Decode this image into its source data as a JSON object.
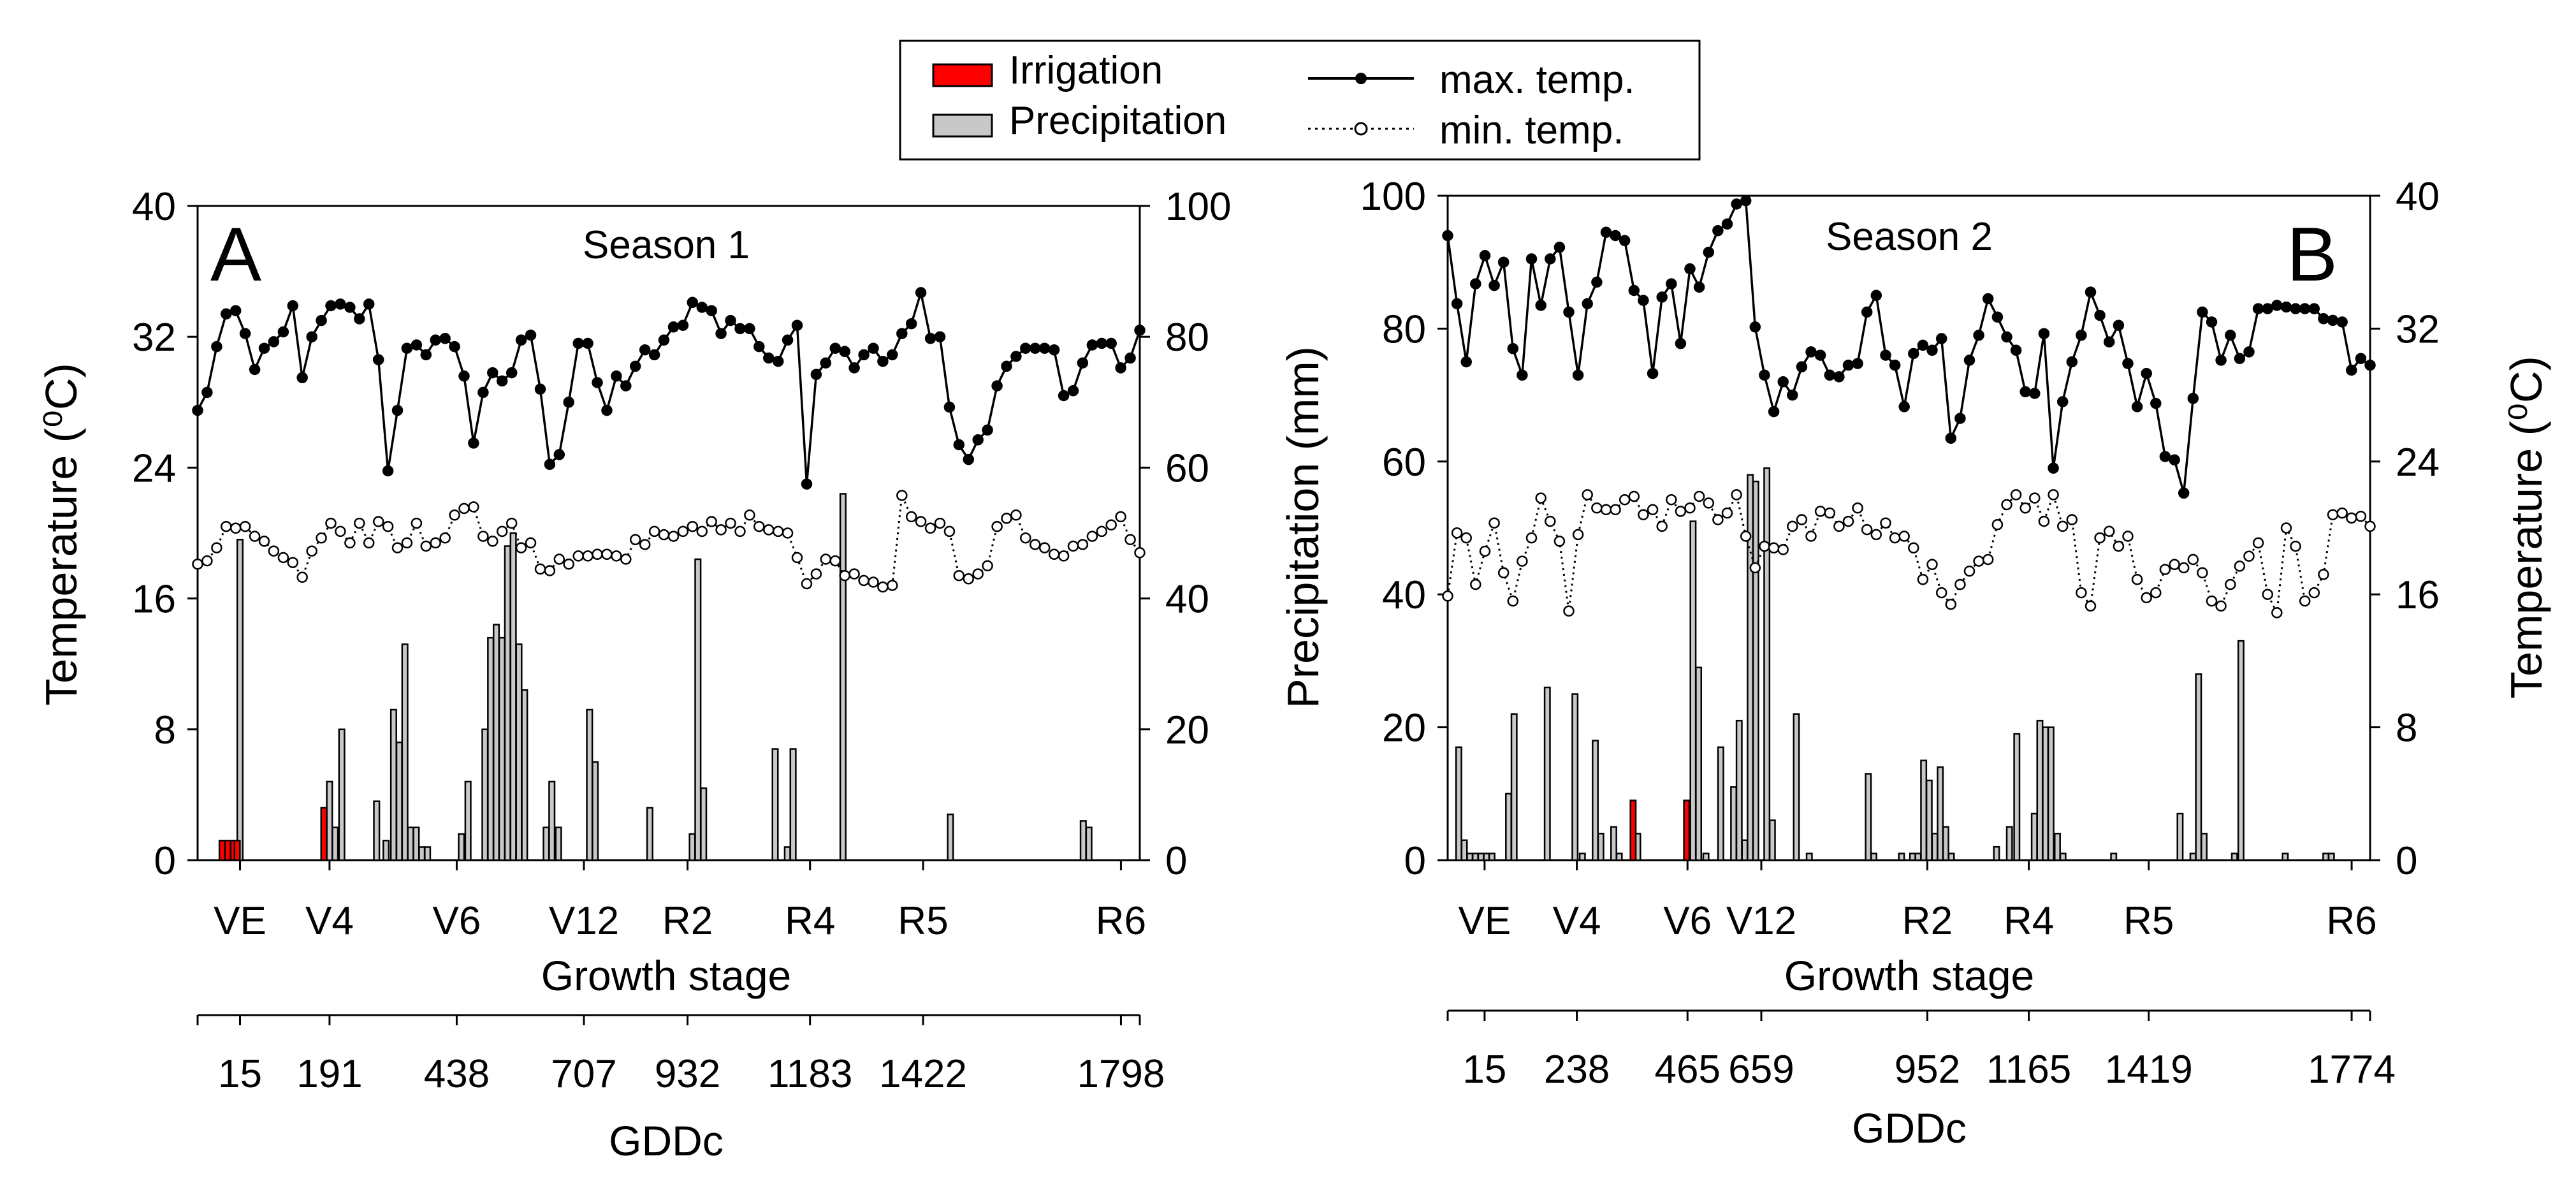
{
  "legend": {
    "items": [
      {
        "label": "Irrigation",
        "kind": "bar",
        "fill": "#ff0000"
      },
      {
        "label": "Precipitation",
        "kind": "bar",
        "fill": "#c8c8c8"
      },
      {
        "label": "max. temp.",
        "kind": "line-solid"
      },
      {
        "label": "min. temp.",
        "kind": "line-dotted"
      }
    ]
  },
  "colors": {
    "irrigation": "#ff0000",
    "precipitation": "#c8c8c8",
    "line": "#000000"
  },
  "chart_data": [
    {
      "type": "bar+line",
      "panel_letter": "A",
      "title": "Season 1",
      "ylabel_left": "Temperature (⁰C)",
      "ylabel_right": "",
      "xlabel": "Growth stage",
      "x2label": "GDDc",
      "day_range": [
        0,
        100
      ],
      "stages": [
        {
          "label": "VE",
          "day": 4.5
        },
        {
          "label": "V4",
          "day": 14
        },
        {
          "label": "V6",
          "day": 27.5
        },
        {
          "label": "V12",
          "day": 41
        },
        {
          "label": "R2",
          "day": 52
        },
        {
          "label": "R4",
          "day": 65
        },
        {
          "label": "R5",
          "day": 77
        },
        {
          "label": "R6",
          "day": 98
        }
      ],
      "gdd_ticks": [
        {
          "label": "15",
          "day": 4.5
        },
        {
          "label": "191",
          "day": 14
        },
        {
          "label": "438",
          "day": 27.5
        },
        {
          "label": "707",
          "day": 41
        },
        {
          "label": "932",
          "day": 52
        },
        {
          "label": "1183",
          "day": 65
        },
        {
          "label": "1422",
          "day": 77
        },
        {
          "label": "1798",
          "day": 98
        }
      ],
      "temp_axis": {
        "side": "left",
        "ticks": [
          "0",
          "8",
          "16",
          "24",
          "32",
          "40"
        ],
        "range": [
          0,
          40
        ]
      },
      "precip_axis": {
        "side": "right",
        "ticks": [
          "0",
          "20",
          "40",
          "60",
          "80",
          "100"
        ],
        "range": [
          0,
          100
        ]
      },
      "max_temp_range": [
        22,
        35
      ],
      "max_temp_n": 100,
      "max_temp_start": 27.5,
      "max_temp_drift": [
        0.002,
        0.11
      ],
      "max_temp": [
        27.5,
        28.6,
        31.4,
        33.4,
        33.6,
        32.2,
        30,
        31.3,
        31.7,
        32.3,
        33.9,
        29.5,
        32,
        33,
        33.9,
        34,
        33.8,
        33.1,
        34,
        30.6,
        23.8,
        27.5,
        31.3,
        31.5,
        30.9,
        31.8,
        31.9,
        31.4,
        29.6,
        25.5,
        28.6,
        29.8,
        29.3,
        29.8,
        31.8,
        32.1,
        28.8,
        24.2,
        24.8,
        28,
        31.6,
        31.6,
        29.2,
        27.5,
        29.6,
        29,
        30.2,
        31.2,
        30.9,
        31.8,
        32.6,
        32.7,
        34.1,
        33.8,
        33.6,
        32.2,
        33,
        32.5,
        32.5,
        31.4,
        30.7,
        30.5,
        31.8,
        32.7,
        23,
        29.7,
        30.4,
        31.3,
        31.1,
        30.1,
        30.9,
        31.3,
        30.5,
        30.9,
        32.2,
        32.8,
        34.7,
        31.9,
        32,
        27.7,
        25.4,
        24.5,
        25.7,
        26.3,
        29,
        30.2,
        30.8,
        31.3,
        31.3,
        31.3,
        31.2,
        28.4,
        28.7,
        30.4,
        31.5,
        31.6,
        31.6,
        30.1,
        30.7,
        32.4
      ],
      "min_temp_range": [
        16,
        22.5
      ],
      "min_temp": [
        18.1,
        18.3,
        19.1,
        20.4,
        20.3,
        20.4,
        19.8,
        19.5,
        18.9,
        18.5,
        18.2,
        17.3,
        18.9,
        19.7,
        20.6,
        20.1,
        19.4,
        20.6,
        19.4,
        20.7,
        20.4,
        19.1,
        19.4,
        20.6,
        19.2,
        19.4,
        19.7,
        21.1,
        21.5,
        21.6,
        19.8,
        19.5,
        20.1,
        20.6,
        19.1,
        19.4,
        17.8,
        17.7,
        18.4,
        18.1,
        18.6,
        18.6,
        18.7,
        18.7,
        18.6,
        18.4,
        19.6,
        19.3,
        20.1,
        19.9,
        19.8,
        20.1,
        20.4,
        20.1,
        20.7,
        20.2,
        20.6,
        20.1,
        21.1,
        20.4,
        20.2,
        20.1,
        20,
        18.5,
        16.9,
        17.5,
        18.4,
        18.3,
        17.4,
        17.5,
        17.1,
        17,
        16.7,
        16.8,
        22.3,
        21,
        20.7,
        20.3,
        20.6,
        20.1,
        17.4,
        17.2,
        17.5,
        18,
        20.4,
        20.9,
        21.1,
        19.7,
        19.3,
        19.1,
        18.7,
        18.6,
        19.2,
        19.3,
        19.8,
        20.1,
        20.5,
        21,
        19.6,
        18.8
      ],
      "precipitation": [
        {
          "day": 4.5,
          "mm": 49
        },
        {
          "day": 14,
          "mm": 12
        },
        {
          "day": 14.6,
          "mm": 5
        },
        {
          "day": 15.3,
          "mm": 20
        },
        {
          "day": 19,
          "mm": 9
        },
        {
          "day": 20,
          "mm": 3
        },
        {
          "day": 20.8,
          "mm": 23
        },
        {
          "day": 21.4,
          "mm": 18
        },
        {
          "day": 22,
          "mm": 33
        },
        {
          "day": 22.6,
          "mm": 5
        },
        {
          "day": 23.2,
          "mm": 5
        },
        {
          "day": 23.8,
          "mm": 2
        },
        {
          "day": 24.4,
          "mm": 2
        },
        {
          "day": 28,
          "mm": 4
        },
        {
          "day": 28.7,
          "mm": 12
        },
        {
          "day": 30.5,
          "mm": 20
        },
        {
          "day": 31.1,
          "mm": 34
        },
        {
          "day": 31.7,
          "mm": 36
        },
        {
          "day": 32.3,
          "mm": 34
        },
        {
          "day": 32.9,
          "mm": 48
        },
        {
          "day": 33.5,
          "mm": 50
        },
        {
          "day": 34.1,
          "mm": 33
        },
        {
          "day": 34.7,
          "mm": 26
        },
        {
          "day": 37,
          "mm": 5
        },
        {
          "day": 37.6,
          "mm": 12
        },
        {
          "day": 38.3,
          "mm": 5
        },
        {
          "day": 41.6,
          "mm": 23
        },
        {
          "day": 42.2,
          "mm": 15
        },
        {
          "day": 48,
          "mm": 8
        },
        {
          "day": 52.5,
          "mm": 4
        },
        {
          "day": 53.1,
          "mm": 46
        },
        {
          "day": 53.7,
          "mm": 11
        },
        {
          "day": 61.3,
          "mm": 17
        },
        {
          "day": 62.6,
          "mm": 2
        },
        {
          "day": 63.2,
          "mm": 17
        },
        {
          "day": 68.5,
          "mm": 56
        },
        {
          "day": 79.9,
          "mm": 7
        },
        {
          "day": 94,
          "mm": 6
        },
        {
          "day": 94.6,
          "mm": 5
        }
      ],
      "irrigation": [
        {
          "day": 2.6,
          "mm": 3
        },
        {
          "day": 3.2,
          "mm": 3
        },
        {
          "day": 3.8,
          "mm": 3
        },
        {
          "day": 4.2,
          "mm": 3
        },
        {
          "day": 13.4,
          "mm": 8
        }
      ]
    },
    {
      "type": "bar+line",
      "panel_letter": "B",
      "title": "Season 2",
      "ylabel_left": "Precipitation (mm)",
      "ylabel_right": "Temperature (⁰C)",
      "xlabel": "Growth stage",
      "x2label": "GDDc",
      "day_range": [
        0,
        100
      ],
      "stages": [
        {
          "label": "VE",
          "day": 4
        },
        {
          "label": "V4",
          "day": 14
        },
        {
          "label": "V6",
          "day": 26
        },
        {
          "label": "V12",
          "day": 34
        },
        {
          "label": "R2",
          "day": 52
        },
        {
          "label": "R4",
          "day": 63
        },
        {
          "label": "R5",
          "day": 76
        },
        {
          "label": "R6",
          "day": 98
        }
      ],
      "gdd_ticks": [
        {
          "label": "15",
          "day": 4
        },
        {
          "label": "238",
          "day": 14
        },
        {
          "label": "465",
          "day": 26
        },
        {
          "label": "659",
          "day": 34
        },
        {
          "label": "952",
          "day": 52
        },
        {
          "label": "1165",
          "day": 63
        },
        {
          "label": "1419",
          "day": 76
        },
        {
          "label": "1774",
          "day": 98
        }
      ],
      "temp_axis": {
        "side": "right",
        "ticks": [
          "0",
          "8",
          "16",
          "24",
          "32",
          "40"
        ],
        "range": [
          0,
          40
        ]
      },
      "precip_axis": {
        "side": "left",
        "ticks": [
          "0",
          "20",
          "40",
          "60",
          "80",
          "100"
        ],
        "range": [
          0,
          100
        ]
      },
      "max_temp_range": [
        22,
        40
      ],
      "max_temp_n": 100,
      "max_temp_start": 37.6,
      "max_temp_drift": [
        -0.025,
        0
      ],
      "max_temp": [
        37.6,
        33.5,
        30,
        34.7,
        36.4,
        34.6,
        36,
        30.8,
        29.2,
        36.2,
        33.4,
        36.2,
        36.9,
        33,
        29.2,
        33.5,
        34.8,
        37.8,
        37.6,
        37.3,
        34.3,
        33.7,
        29.3,
        33.9,
        34.7,
        31.1,
        35.6,
        34.5,
        36.6,
        37.9,
        38.3,
        39.5,
        39.7,
        32.1,
        29.2,
        27,
        28.8,
        28,
        29.7,
        30.6,
        30.4,
        29.2,
        29.1,
        29.8,
        29.9,
        33,
        34,
        30.4,
        29.8,
        27.3,
        30.5,
        31,
        30.7,
        31.4,
        25.4,
        26.6,
        30.1,
        31.6,
        33.8,
        32.7,
        31.5,
        30.7,
        28.2,
        28.1,
        31.7,
        23.6,
        27.6,
        30,
        31.6,
        34.2,
        32.8,
        31.2,
        32.2,
        29.9,
        27.3,
        29.3,
        27.5,
        24.3,
        24.1,
        22.1,
        27.8,
        33,
        32.4,
        30.1,
        31.6,
        30.2,
        30.6,
        33.2,
        33.2,
        33.4,
        33.3,
        33.2,
        33.2,
        33.2,
        32.6,
        32.5,
        32.4,
        29.5,
        30.2,
        29.8
      ],
      "min_temp_range": [
        14,
        22.5
      ],
      "min_temp": [
        15.9,
        19.7,
        19.4,
        16.6,
        18.6,
        20.3,
        17.3,
        15.6,
        18,
        19.4,
        21.8,
        20.4,
        19.2,
        15,
        19.6,
        22,
        21.2,
        21.1,
        21.1,
        21.7,
        21.9,
        20.8,
        21.1,
        20.1,
        21.7,
        21,
        21.2,
        21.9,
        21.5,
        20.5,
        20.9,
        22,
        19.5,
        17.6,
        18.9,
        18.8,
        18.7,
        20.1,
        20.5,
        19.5,
        21,
        20.9,
        20.1,
        20.4,
        21.2,
        19.9,
        19.6,
        20.3,
        19.4,
        19.5,
        18.8,
        16.9,
        17.8,
        16.1,
        15.4,
        16.6,
        17.4,
        18,
        18.1,
        20.2,
        21.4,
        22,
        21.2,
        21.8,
        20.4,
        22,
        20.1,
        20.5,
        16.1,
        15.3,
        19.4,
        19.8,
        18.9,
        19.5,
        16.9,
        15.8,
        16.1,
        17.5,
        17.8,
        17.6,
        18.1,
        17.3,
        15.6,
        15.3,
        16.6,
        17.7,
        18.3,
        19.1,
        16,
        14.9,
        20,
        18.9,
        15.6,
        16.1,
        17.2,
        20.8,
        20.9,
        20.6,
        20.7,
        20.1
      ],
      "precipitation": [
        {
          "day": 1.2,
          "mm": 17
        },
        {
          "day": 1.8,
          "mm": 3
        },
        {
          "day": 2.4,
          "mm": 1
        },
        {
          "day": 3,
          "mm": 1
        },
        {
          "day": 3.6,
          "mm": 1
        },
        {
          "day": 4.2,
          "mm": 1
        },
        {
          "day": 4.8,
          "mm": 1
        },
        {
          "day": 6.6,
          "mm": 10
        },
        {
          "day": 7.2,
          "mm": 22
        },
        {
          "day": 10.8,
          "mm": 26
        },
        {
          "day": 13.8,
          "mm": 25
        },
        {
          "day": 14.6,
          "mm": 1
        },
        {
          "day": 16,
          "mm": 18
        },
        {
          "day": 16.6,
          "mm": 4
        },
        {
          "day": 18,
          "mm": 5
        },
        {
          "day": 18.6,
          "mm": 1
        },
        {
          "day": 20.6,
          "mm": 4
        },
        {
          "day": 26.6,
          "mm": 51
        },
        {
          "day": 27.2,
          "mm": 29
        },
        {
          "day": 28,
          "mm": 1
        },
        {
          "day": 29.6,
          "mm": 17
        },
        {
          "day": 31,
          "mm": 11
        },
        {
          "day": 31.6,
          "mm": 21
        },
        {
          "day": 32.2,
          "mm": 3
        },
        {
          "day": 32.8,
          "mm": 58
        },
        {
          "day": 33.4,
          "mm": 57
        },
        {
          "day": 34.6,
          "mm": 59
        },
        {
          "day": 35.2,
          "mm": 6
        },
        {
          "day": 37.8,
          "mm": 22
        },
        {
          "day": 39.2,
          "mm": 1
        },
        {
          "day": 45.6,
          "mm": 13
        },
        {
          "day": 46.2,
          "mm": 1
        },
        {
          "day": 49.2,
          "mm": 1
        },
        {
          "day": 50.4,
          "mm": 1
        },
        {
          "day": 51,
          "mm": 1
        },
        {
          "day": 51.6,
          "mm": 15
        },
        {
          "day": 52.2,
          "mm": 12
        },
        {
          "day": 52.8,
          "mm": 4
        },
        {
          "day": 53.4,
          "mm": 14
        },
        {
          "day": 54,
          "mm": 5
        },
        {
          "day": 54.6,
          "mm": 1
        },
        {
          "day": 59.5,
          "mm": 2
        },
        {
          "day": 60.9,
          "mm": 5
        },
        {
          "day": 61.7,
          "mm": 19
        },
        {
          "day": 63.6,
          "mm": 7
        },
        {
          "day": 64.2,
          "mm": 21
        },
        {
          "day": 64.8,
          "mm": 20
        },
        {
          "day": 65.4,
          "mm": 20
        },
        {
          "day": 66.1,
          "mm": 4
        },
        {
          "day": 66.7,
          "mm": 1
        },
        {
          "day": 72.2,
          "mm": 1
        },
        {
          "day": 79.4,
          "mm": 7
        },
        {
          "day": 80.8,
          "mm": 1
        },
        {
          "day": 81.4,
          "mm": 28
        },
        {
          "day": 82,
          "mm": 4
        },
        {
          "day": 85.3,
          "mm": 1
        },
        {
          "day": 86,
          "mm": 33
        },
        {
          "day": 90.8,
          "mm": 1
        },
        {
          "day": 95.2,
          "mm": 1
        },
        {
          "day": 95.8,
          "mm": 1
        }
      ],
      "irrigation": [
        {
          "day": 20.1,
          "mm": 9
        },
        {
          "day": 25.9,
          "mm": 9
        }
      ]
    }
  ]
}
